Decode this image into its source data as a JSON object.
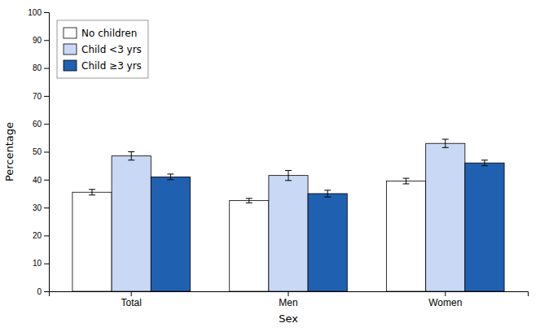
{
  "chart_data": {
    "type": "bar",
    "categories": [
      "Total",
      "Men",
      "Women"
    ],
    "series": [
      {
        "name": "No children",
        "color": "#ffffff",
        "values": [
          35.5,
          32.5,
          39.5
        ],
        "errors": [
          1.0,
          0.8,
          1.0
        ]
      },
      {
        "name": "Child <3 yrs",
        "color": "#c8d8f5",
        "values": [
          48.5,
          41.5,
          53.0
        ],
        "errors": [
          1.5,
          1.8,
          1.5
        ]
      },
      {
        "name": "Child ≥3 yrs",
        "color": "#2060b0",
        "values": [
          41.0,
          35.0,
          46.0
        ],
        "errors": [
          1.0,
          1.2,
          1.0
        ]
      }
    ],
    "xlabel": "Sex",
    "ylabel": "Percentage",
    "ylim": [
      0,
      100
    ],
    "yticks": [
      0,
      10,
      20,
      30,
      40,
      50,
      60,
      70,
      80,
      90,
      100
    ],
    "grid": false,
    "legend": "upper left"
  }
}
